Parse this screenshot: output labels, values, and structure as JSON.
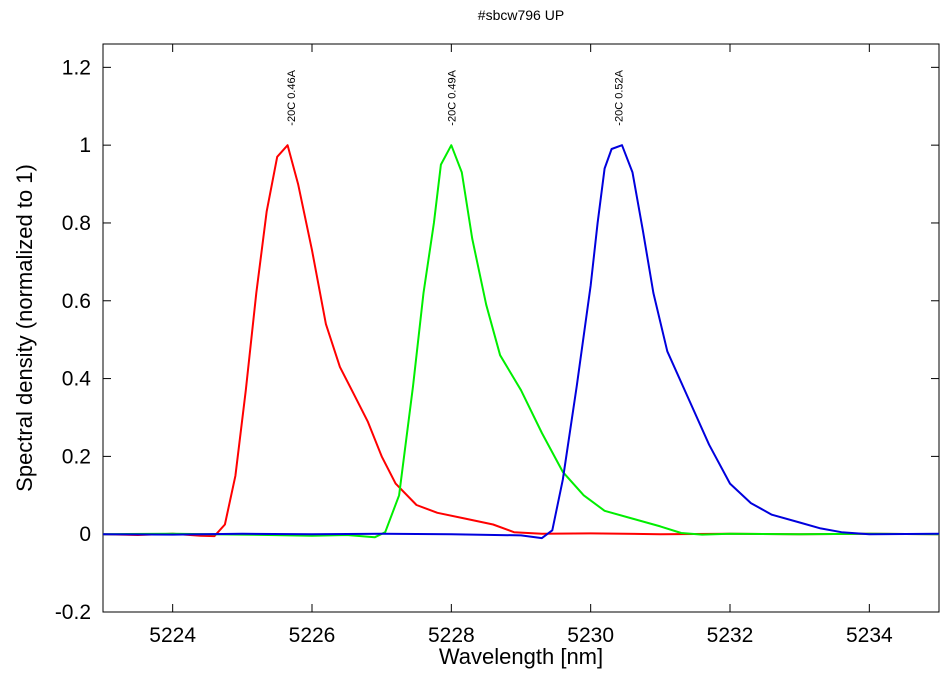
{
  "chart_data": {
    "type": "line",
    "title": "#sbcw796 UP",
    "xlabel": "Wavelength [nm]",
    "ylabel": "Spectral density (normalized to 1)",
    "xlim": [
      5223,
      5235
    ],
    "ylim": [
      -0.2,
      1.26
    ],
    "x_ticks": [
      5224,
      5226,
      5228,
      5230,
      5232,
      5234
    ],
    "y_ticks": [
      -0.2,
      0,
      0.2,
      0.4,
      0.6,
      0.8,
      1,
      1.2
    ],
    "y_tick_labels": [
      "-0.2",
      "0",
      "0.2",
      "0.4",
      "0.6",
      "0.8",
      "1",
      "1.2"
    ],
    "grid": false,
    "series": [
      {
        "name": "-20C 0.46A",
        "color": "#ff0000",
        "peak_x": 5225.7,
        "points": [
          [
            5223,
            0
          ],
          [
            5223.5,
            -0.002
          ],
          [
            5224,
            0.001
          ],
          [
            5224.4,
            -0.004
          ],
          [
            5224.6,
            -0.005
          ],
          [
            5224.75,
            0.025
          ],
          [
            5224.9,
            0.15
          ],
          [
            5225.05,
            0.37
          ],
          [
            5225.2,
            0.62
          ],
          [
            5225.35,
            0.83
          ],
          [
            5225.5,
            0.97
          ],
          [
            5225.65,
            1.0
          ],
          [
            5225.8,
            0.9
          ],
          [
            5226,
            0.73
          ],
          [
            5226.2,
            0.54
          ],
          [
            5226.4,
            0.43
          ],
          [
            5226.6,
            0.36
          ],
          [
            5226.8,
            0.29
          ],
          [
            5227,
            0.2
          ],
          [
            5227.2,
            0.13
          ],
          [
            5227.5,
            0.075
          ],
          [
            5227.8,
            0.055
          ],
          [
            5228.2,
            0.04
          ],
          [
            5228.6,
            0.025
          ],
          [
            5228.9,
            0.005
          ],
          [
            5229.3,
            0.001
          ],
          [
            5230,
            0.002
          ],
          [
            5231,
            0
          ],
          [
            5232,
            0.001
          ],
          [
            5233,
            0
          ],
          [
            5234,
            0.001
          ],
          [
            5235,
            0
          ]
        ]
      },
      {
        "name": "-20C 0.49A",
        "color": "#00ee00",
        "peak_x": 5228,
        "points": [
          [
            5223,
            0
          ],
          [
            5224,
            0.001
          ],
          [
            5225,
            -0.001
          ],
          [
            5226,
            -0.004
          ],
          [
            5226.5,
            -0.002
          ],
          [
            5226.9,
            -0.008
          ],
          [
            5227.05,
            0.005
          ],
          [
            5227.25,
            0.1
          ],
          [
            5227.45,
            0.38
          ],
          [
            5227.6,
            0.62
          ],
          [
            5227.75,
            0.8
          ],
          [
            5227.85,
            0.95
          ],
          [
            5228,
            1.0
          ],
          [
            5228.15,
            0.93
          ],
          [
            5228.3,
            0.76
          ],
          [
            5228.5,
            0.59
          ],
          [
            5228.7,
            0.46
          ],
          [
            5229,
            0.37
          ],
          [
            5229.3,
            0.26
          ],
          [
            5229.6,
            0.16
          ],
          [
            5229.9,
            0.1
          ],
          [
            5230.2,
            0.06
          ],
          [
            5230.6,
            0.04
          ],
          [
            5231,
            0.02
          ],
          [
            5231.3,
            0.003
          ],
          [
            5231.6,
            -0.001
          ],
          [
            5232,
            0.001
          ],
          [
            5233,
            0
          ],
          [
            5234,
            0.001
          ],
          [
            5235,
            0
          ]
        ]
      },
      {
        "name": "-20C 0.52A",
        "color": "#0000dd",
        "peak_x": 5230.4,
        "points": [
          [
            5223,
            0
          ],
          [
            5224,
            -0.001
          ],
          [
            5225,
            0.001
          ],
          [
            5226,
            0
          ],
          [
            5227,
            0.001
          ],
          [
            5228,
            0
          ],
          [
            5229,
            -0.003
          ],
          [
            5229.3,
            -0.01
          ],
          [
            5229.45,
            0.01
          ],
          [
            5229.6,
            0.14
          ],
          [
            5229.8,
            0.38
          ],
          [
            5230,
            0.64
          ],
          [
            5230.1,
            0.8
          ],
          [
            5230.2,
            0.94
          ],
          [
            5230.3,
            0.99
          ],
          [
            5230.45,
            1.0
          ],
          [
            5230.6,
            0.93
          ],
          [
            5230.75,
            0.78
          ],
          [
            5230.9,
            0.62
          ],
          [
            5231.1,
            0.47
          ],
          [
            5231.4,
            0.35
          ],
          [
            5231.7,
            0.23
          ],
          [
            5232,
            0.13
          ],
          [
            5232.3,
            0.08
          ],
          [
            5232.6,
            0.05
          ],
          [
            5233,
            0.03
          ],
          [
            5233.3,
            0.015
          ],
          [
            5233.6,
            0.005
          ],
          [
            5234,
            0
          ],
          [
            5235,
            0.001
          ]
        ]
      }
    ]
  }
}
